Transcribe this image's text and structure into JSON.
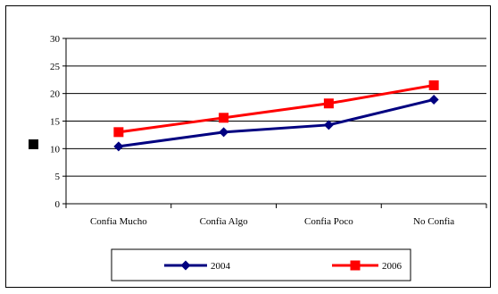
{
  "chart_data": {
    "type": "line",
    "categories": [
      "Confia Mucho",
      "Confia Algo",
      "Confia Poco",
      "No Confia"
    ],
    "series": [
      {
        "name": "2004",
        "values": [
          10.4,
          13.0,
          14.3,
          18.9
        ],
        "color": "#000080",
        "marker": "diamond"
      },
      {
        "name": "2006",
        "values": [
          13.0,
          15.6,
          18.2,
          21.5
        ],
        "color": "#ff0000",
        "marker": "square"
      }
    ],
    "ylim": [
      0,
      30
    ],
    "yticks": [
      "0",
      "5",
      "10",
      "15",
      "20",
      "25",
      "30"
    ],
    "grid": true,
    "legend_position": "bottom",
    "title": "",
    "xlabel": "",
    "ylabel": ""
  }
}
